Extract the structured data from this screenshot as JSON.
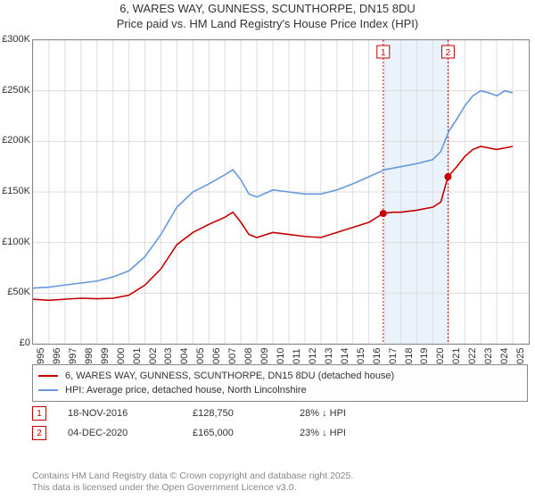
{
  "title_line1": "6, WARES WAY, GUNNESS, SCUNTHORPE, DN15 8DU",
  "title_line2": "Price paid vs. HM Land Registry's House Price Index (HPI)",
  "colors": {
    "series_property": "#c40000",
    "series_hpi": "#6699dd",
    "grid": "#dddddd",
    "axis": "#888888",
    "marker_border": "#c40000",
    "highlight_band": "#eaf2fb",
    "marker_line": "#c40000",
    "footnote": "#888888"
  },
  "chart": {
    "type": "line",
    "x_range": [
      1995,
      2026
    ],
    "y_range": [
      0,
      300000
    ],
    "y_ticks": [
      0,
      50000,
      100000,
      150000,
      200000,
      250000,
      300000
    ],
    "y_tick_labels": [
      "£0",
      "£50K",
      "£100K",
      "£150K",
      "£200K",
      "£250K",
      "£300K"
    ],
    "x_ticks": [
      1995,
      1996,
      1997,
      1998,
      1999,
      2000,
      2001,
      2002,
      2003,
      2004,
      2005,
      2006,
      2007,
      2008,
      2009,
      2010,
      2011,
      2012,
      2013,
      2014,
      2015,
      2016,
      2017,
      2018,
      2019,
      2020,
      2021,
      2022,
      2023,
      2024,
      2025
    ],
    "line_width": 1.6,
    "highlight_band_x": [
      2017,
      2021
    ],
    "series": [
      {
        "name": "property",
        "color": "#c40000",
        "points": [
          [
            1995,
            44000
          ],
          [
            1996,
            43000
          ],
          [
            1997,
            44000
          ],
          [
            1998,
            45000
          ],
          [
            1999,
            44500
          ],
          [
            2000,
            45000
          ],
          [
            2001,
            48000
          ],
          [
            2002,
            58000
          ],
          [
            2003,
            74000
          ],
          [
            2004,
            98000
          ],
          [
            2005,
            110000
          ],
          [
            2006,
            118000
          ],
          [
            2007,
            125000
          ],
          [
            2007.5,
            130000
          ],
          [
            2008,
            120000
          ],
          [
            2008.5,
            108000
          ],
          [
            2009,
            105000
          ],
          [
            2010,
            110000
          ],
          [
            2011,
            108000
          ],
          [
            2012,
            106000
          ],
          [
            2013,
            105000
          ],
          [
            2014,
            110000
          ],
          [
            2015,
            115000
          ],
          [
            2016,
            120000
          ],
          [
            2016.9,
            128750
          ],
          [
            2017.5,
            130000
          ],
          [
            2018,
            130000
          ],
          [
            2019,
            132000
          ],
          [
            2020,
            135000
          ],
          [
            2020.5,
            140000
          ],
          [
            2020.95,
            165000
          ],
          [
            2021.5,
            175000
          ],
          [
            2022,
            185000
          ],
          [
            2022.5,
            192000
          ],
          [
            2023,
            195000
          ],
          [
            2024,
            192000
          ],
          [
            2025,
            195000
          ]
        ]
      },
      {
        "name": "hpi",
        "color": "#6699dd",
        "points": [
          [
            1995,
            55000
          ],
          [
            1996,
            56000
          ],
          [
            1997,
            58000
          ],
          [
            1998,
            60000
          ],
          [
            1999,
            62000
          ],
          [
            2000,
            66000
          ],
          [
            2001,
            72000
          ],
          [
            2002,
            86000
          ],
          [
            2003,
            108000
          ],
          [
            2004,
            135000
          ],
          [
            2005,
            150000
          ],
          [
            2006,
            158000
          ],
          [
            2007,
            167000
          ],
          [
            2007.5,
            172000
          ],
          [
            2008,
            162000
          ],
          [
            2008.5,
            148000
          ],
          [
            2009,
            145000
          ],
          [
            2010,
            152000
          ],
          [
            2011,
            150000
          ],
          [
            2012,
            148000
          ],
          [
            2013,
            148000
          ],
          [
            2014,
            152000
          ],
          [
            2015,
            158000
          ],
          [
            2016,
            165000
          ],
          [
            2017,
            172000
          ],
          [
            2018,
            175000
          ],
          [
            2019,
            178000
          ],
          [
            2020,
            182000
          ],
          [
            2020.5,
            190000
          ],
          [
            2021,
            210000
          ],
          [
            2021.5,
            222000
          ],
          [
            2022,
            235000
          ],
          [
            2022.5,
            245000
          ],
          [
            2023,
            250000
          ],
          [
            2023.5,
            248000
          ],
          [
            2024,
            245000
          ],
          [
            2024.5,
            250000
          ],
          [
            2025,
            248000
          ]
        ]
      }
    ],
    "markers": [
      {
        "label": "1",
        "x": 2016.9,
        "y": 128750
      },
      {
        "label": "2",
        "x": 2020.95,
        "y": 165000
      }
    ]
  },
  "legend": [
    {
      "color": "#c40000",
      "text": "6, WARES WAY, GUNNESS, SCUNTHORPE, DN15 8DU (detached house)"
    },
    {
      "color": "#6699dd",
      "text": "HPI: Average price, detached house, North Lincolnshire"
    }
  ],
  "marker_rows": [
    {
      "label": "1",
      "date": "18-NOV-2016",
      "price": "£128,750",
      "delta": "28% ↓ HPI"
    },
    {
      "label": "2",
      "date": "04-DEC-2020",
      "price": "£165,000",
      "delta": "23% ↓ HPI"
    }
  ],
  "footer_line1": "Contains HM Land Registry data © Crown copyright and database right 2025.",
  "footer_line2": "This data is licensed under the Open Government Licence v3.0."
}
